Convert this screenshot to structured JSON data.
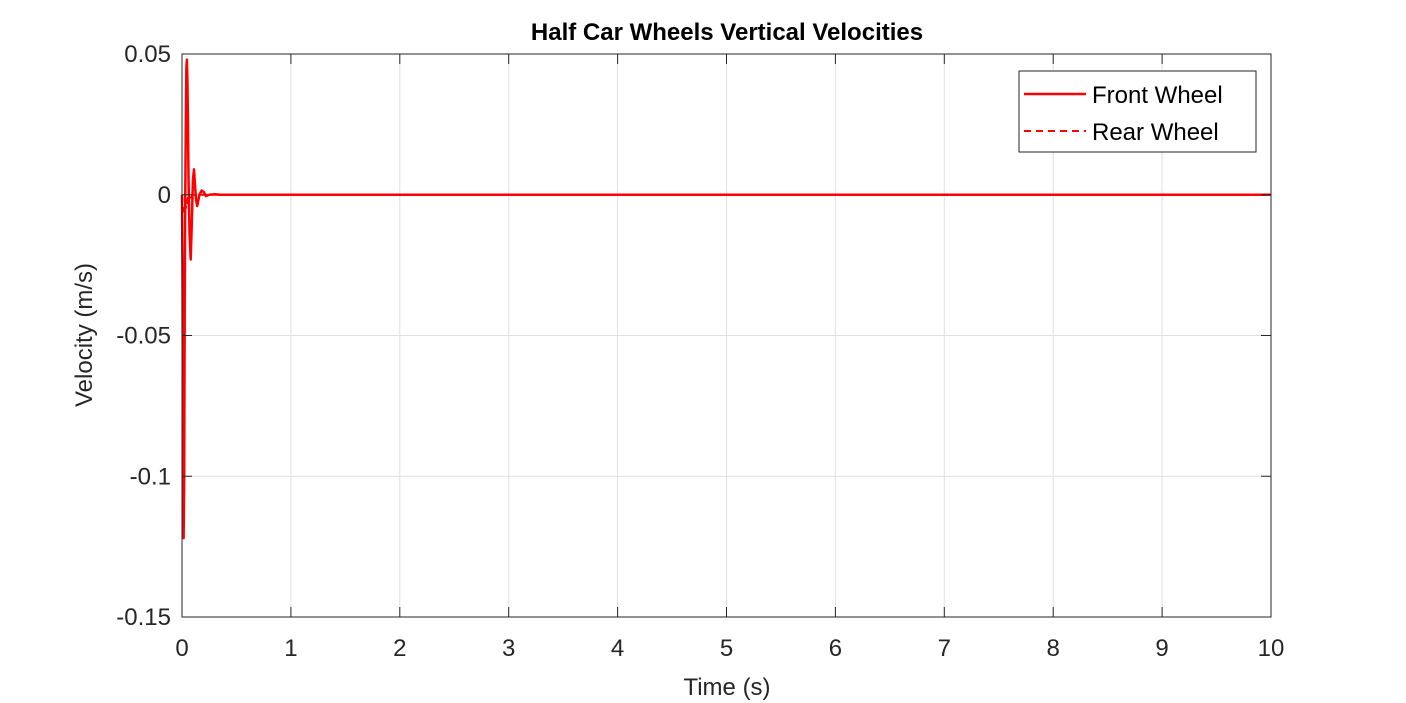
{
  "chart_data": {
    "type": "line",
    "title": "Half Car Wheels Vertical Velocities",
    "xlabel": "Time (s)",
    "ylabel": "Velocity (m/s)",
    "xlim": [
      0,
      10
    ],
    "ylim": [
      -0.15,
      0.05
    ],
    "xticks": [
      0,
      1,
      2,
      3,
      4,
      5,
      6,
      7,
      8,
      9,
      10
    ],
    "xtick_labels": [
      "0",
      "1",
      "2",
      "3",
      "4",
      "5",
      "6",
      "7",
      "8",
      "9",
      "10"
    ],
    "yticks": [
      -0.15,
      -0.1,
      -0.05,
      0,
      0.05
    ],
    "ytick_labels": [
      "-0.15",
      "-0.1",
      "-0.05",
      "0",
      "0.05"
    ],
    "grid": true,
    "legend_position": "top-right",
    "series": [
      {
        "name": "Front Wheel",
        "color": "#ff0000",
        "style": "solid",
        "x": [
          0,
          0.005,
          0.01,
          0.015,
          0.02,
          0.025,
          0.03,
          0.035,
          0.04,
          0.045,
          0.05,
          0.055,
          0.06,
          0.07,
          0.08,
          0.09,
          0.1,
          0.11,
          0.12,
          0.13,
          0.14,
          0.16,
          0.18,
          0.2,
          0.22,
          0.25,
          0.3,
          0.35,
          0.4,
          0.5,
          1,
          2,
          3,
          4,
          5,
          6,
          7,
          8,
          9,
          10
        ],
        "y": [
          0,
          -0.03,
          -0.09,
          -0.122,
          -0.1,
          -0.04,
          0.0,
          0.025,
          0.045,
          0.048,
          0.04,
          0.025,
          0.005,
          -0.015,
          -0.023,
          -0.01,
          0.005,
          0.009,
          0.003,
          -0.002,
          -0.004,
          0,
          0.0015,
          0.001,
          -0.0005,
          0,
          0.0002,
          0,
          0,
          0,
          0,
          0,
          0,
          0,
          0,
          0,
          0,
          0,
          0,
          0
        ]
      },
      {
        "name": "Rear Wheel",
        "color": "#ff0000",
        "style": "dashed",
        "x": [
          0,
          0.01,
          0.02,
          0.03,
          0.04,
          0.05,
          0.06,
          0.08,
          0.1,
          0.15,
          0.2,
          0.3,
          0.5,
          1,
          10
        ],
        "y": [
          0,
          -0.004,
          -0.006,
          -0.003,
          -0.005,
          -0.002,
          0,
          -0.001,
          0,
          0,
          0,
          0,
          0,
          0,
          0
        ]
      }
    ]
  }
}
